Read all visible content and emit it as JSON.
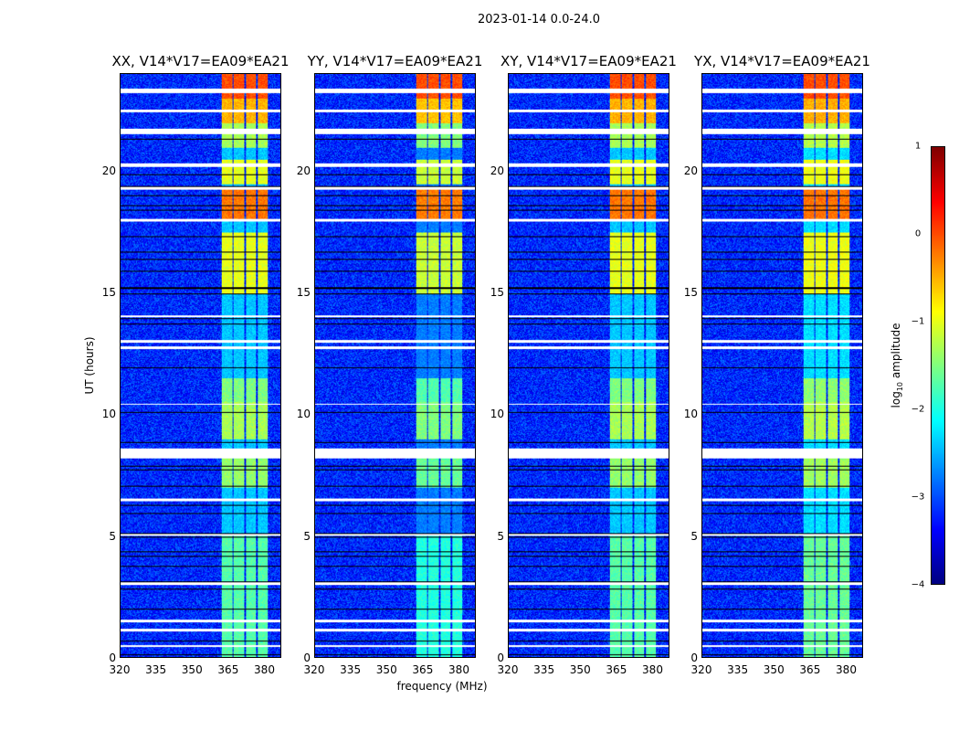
{
  "suptitle": "2023-01-14 0.0-24.0",
  "chart_data": {
    "type": "heatmap",
    "title": "2023-01-14 0.0-24.0",
    "panels": [
      {
        "title": "XX, V14*V17=EA09*EA21",
        "band_scale": 1.0
      },
      {
        "title": "YY, V14*V17=EA09*EA21",
        "band_scale": 1.15
      },
      {
        "title": "XY, V14*V17=EA09*EA21",
        "band_scale": 1.0
      },
      {
        "title": "YX, V14*V17=EA09*EA21",
        "band_scale": 0.95
      }
    ],
    "xlabel": "frequency (MHz)",
    "ylabel": "UT (hours)",
    "xlim": [
      320,
      387
    ],
    "ylim": [
      0,
      24
    ],
    "xticks": [
      "320",
      "335",
      "350",
      "365",
      "380"
    ],
    "yticks": [
      "0",
      "5",
      "10",
      "15",
      "20"
    ],
    "background_log_amp": -3.2,
    "bright_subbands_mhz": [
      [
        362,
        367
      ],
      [
        367,
        372
      ],
      [
        372,
        377
      ],
      [
        377,
        382
      ]
    ],
    "band_level_by_hour": [
      {
        "from": 23.0,
        "to": 24.0,
        "value": 0.0
      },
      {
        "from": 22.0,
        "to": 23.0,
        "value": -0.5
      },
      {
        "from": 21.0,
        "to": 22.0,
        "value": -1.3
      },
      {
        "from": 19.5,
        "to": 20.5,
        "value": -1.0
      },
      {
        "from": 18.0,
        "to": 19.3,
        "value": -0.2
      },
      {
        "from": 15.0,
        "to": 17.5,
        "value": -1.0
      },
      {
        "from": 10.5,
        "to": 11.5,
        "value": -1.5
      },
      {
        "from": 9.0,
        "to": 10.5,
        "value": -1.3
      },
      {
        "from": 7.0,
        "to": 8.2,
        "value": -1.4
      },
      {
        "from": 0.0,
        "to": 5.0,
        "value": -1.7
      }
    ],
    "flagged_hours": [
      [
        23.25,
        23.4
      ],
      [
        22.45,
        22.55
      ],
      [
        21.55,
        21.75
      ],
      [
        20.2,
        20.35
      ],
      [
        19.25,
        19.35
      ],
      [
        17.95,
        18.05
      ],
      [
        14.0,
        14.1
      ],
      [
        12.95,
        13.05
      ],
      [
        12.7,
        12.8
      ],
      [
        10.4,
        10.45
      ],
      [
        8.2,
        8.6
      ],
      [
        6.45,
        6.55
      ],
      [
        5.0,
        5.1
      ],
      [
        3.0,
        3.1
      ],
      [
        1.45,
        1.55
      ],
      [
        1.05,
        1.2
      ],
      [
        0.45,
        0.5
      ]
    ],
    "colorbar": {
      "label": "log10 amplitude",
      "range": [
        -4,
        1
      ],
      "ticks": [
        "1",
        "0",
        "−1",
        "−2",
        "−3",
        "−4"
      ],
      "colormap": "jet"
    }
  }
}
